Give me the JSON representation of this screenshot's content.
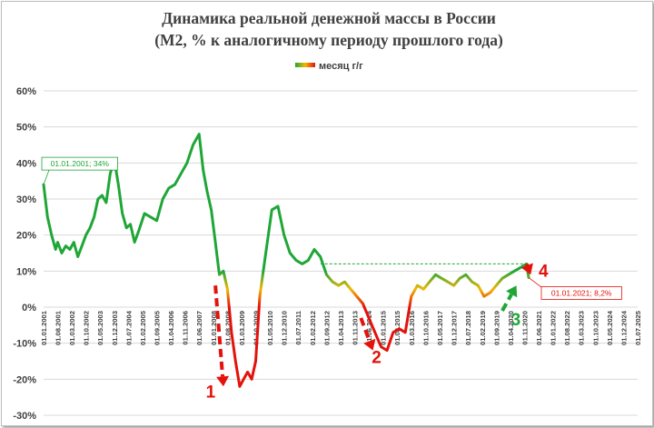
{
  "chart_data": {
    "type": "line",
    "title": "Динамика реальной денежной массы в России",
    "subtitle": "(М2, % к аналогичному периоду прошлого года)",
    "xlabel": "",
    "ylabel": "",
    "ylim": [
      -30,
      60
    ],
    "yticks": [
      60,
      50,
      40,
      30,
      20,
      10,
      0,
      -10,
      -20,
      -30
    ],
    "ytick_labels": [
      "60%",
      "50%",
      "40%",
      "30%",
      "20%",
      "10%",
      "0%",
      "-10%",
      "-20%",
      "-30%"
    ],
    "xrange": [
      "2001-01-01",
      "2025-07-01"
    ],
    "xtick_labels": [
      "01.01.2001",
      "01.08.2001",
      "01.03.2002",
      "01.10.2002",
      "01.05.2003",
      "01.12.2003",
      "01.07.2004",
      "01.02.2005",
      "01.09.2005",
      "01.04.2006",
      "01.11.2006",
      "01.06.2007",
      "01.01.2008",
      "01.08.2008",
      "01.03.2009",
      "01.10.2009",
      "01.05.2010",
      "01.12.2010",
      "01.07.2011",
      "01.02.2012",
      "01.09.2012",
      "01.04.2013",
      "01.11.2013",
      "01.06.2014",
      "01.01.2015",
      "01.08.2015",
      "01.03.2016",
      "01.10.2016",
      "01.05.2017",
      "01.12.2017",
      "01.07.2018",
      "01.02.2019",
      "01.09.2019",
      "01.04.2020",
      "01.11.2020",
      "01.06.2021",
      "01.01.2022",
      "01.08.2022",
      "01.03.2023",
      "01.10.2023",
      "01.05.2024",
      "01.12.2024",
      "01.07.2025"
    ],
    "grid": "horizontal",
    "legend": {
      "position": "top-center"
    },
    "color_scale": {
      "high": "#1fa637",
      "mid": "#f2b705",
      "low": "#e3120b"
    },
    "series": [
      {
        "name": "месяц г/г",
        "x": [
          "2001-01-01",
          "2001-03-01",
          "2001-05-01",
          "2001-07-01",
          "2001-08-01",
          "2001-10-01",
          "2001-12-01",
          "2002-02-01",
          "2002-04-01",
          "2002-06-01",
          "2002-08-01",
          "2002-10-01",
          "2002-12-01",
          "2003-02-01",
          "2003-04-01",
          "2003-06-01",
          "2003-08-01",
          "2003-10-01",
          "2003-12-01",
          "2004-02-01",
          "2004-04-01",
          "2004-06-01",
          "2004-08-01",
          "2004-10-01",
          "2004-12-01",
          "2005-03-01",
          "2005-06-01",
          "2005-09-01",
          "2005-12-01",
          "2006-03-01",
          "2006-06-01",
          "2006-09-01",
          "2006-12-01",
          "2007-03-01",
          "2007-06-01",
          "2007-08-01",
          "2007-10-01",
          "2007-12-01",
          "2008-02-01",
          "2008-04-01",
          "2008-06-01",
          "2008-08-01",
          "2008-10-01",
          "2008-12-01",
          "2009-02-01",
          "2009-04-01",
          "2009-06-01",
          "2009-08-01",
          "2009-10-01",
          "2009-12-01",
          "2010-03-01",
          "2010-06-01",
          "2010-09-01",
          "2010-12-01",
          "2011-03-01",
          "2011-06-01",
          "2011-09-01",
          "2011-12-01",
          "2012-03-01",
          "2012-06-01",
          "2012-09-01",
          "2012-12-01",
          "2013-03-01",
          "2013-06-01",
          "2013-09-01",
          "2013-12-01",
          "2014-03-01",
          "2014-06-01",
          "2014-09-01",
          "2014-12-01",
          "2015-03-01",
          "2015-06-01",
          "2015-09-01",
          "2015-12-01",
          "2016-03-01",
          "2016-06-01",
          "2016-09-01",
          "2016-12-01",
          "2017-03-01",
          "2017-06-01",
          "2017-09-01",
          "2017-12-01",
          "2018-03-01",
          "2018-06-01",
          "2018-09-01",
          "2018-12-01",
          "2019-03-01",
          "2019-06-01",
          "2019-09-01",
          "2019-12-01",
          "2020-03-01",
          "2020-06-01",
          "2020-09-01",
          "2020-12-01",
          "2021-01-01"
        ],
        "values": [
          34,
          25,
          20,
          16,
          18,
          15,
          17,
          16,
          18,
          14,
          17,
          20,
          22,
          25,
          30,
          31,
          29,
          37,
          41,
          34,
          26,
          22,
          23,
          18,
          21,
          26,
          25,
          24,
          30,
          33,
          34,
          37,
          40,
          45,
          48,
          38,
          32,
          27,
          18,
          9,
          10,
          5,
          -7,
          -15,
          -22,
          -20,
          -18,
          -20,
          -15,
          3,
          15,
          27,
          28,
          20,
          15,
          13,
          12,
          13,
          16,
          14,
          9,
          7,
          6,
          7,
          5,
          3,
          1,
          -3,
          -7,
          -11,
          -12,
          -7,
          -6,
          -7,
          3,
          6,
          5,
          7,
          9,
          8,
          7,
          6,
          8,
          9,
          7,
          6,
          3,
          4,
          6,
          8,
          9,
          10,
          11,
          12,
          8.2
        ]
      }
    ],
    "reference_line": {
      "value": 12,
      "from": "2012-06-01",
      "to": "2020-12-01"
    },
    "annotations": [
      {
        "text": "01.01.2001; 34%",
        "x": "2001-01-01",
        "y": 34,
        "color": "#1fa637"
      },
      {
        "text": "01.01.2021; 8,2%",
        "x": "2021-01-01",
        "y": 8.2,
        "color": "#e3120b"
      }
    ],
    "arrows": [
      {
        "label": "1",
        "color": "#e3120b",
        "from": [
          "2008-02-01",
          6
        ],
        "to": [
          "2008-06-01",
          -22
        ]
      },
      {
        "label": "2",
        "color": "#e3120b",
        "from": [
          "2014-02-01",
          -3
        ],
        "to": [
          "2014-08-01",
          -12
        ]
      },
      {
        "label": "3",
        "color": "#1fa637",
        "from": [
          "2019-12-01",
          -1
        ],
        "to": [
          "2020-07-01",
          6
        ]
      },
      {
        "label": "4",
        "color": "#e3120b",
        "from": [
          "2020-12-01",
          12
        ],
        "to": [
          "2021-02-01",
          9
        ]
      }
    ]
  }
}
